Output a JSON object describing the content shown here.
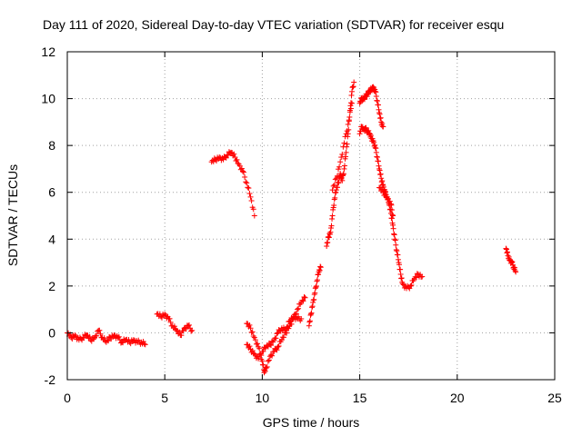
{
  "chart_data": {
    "type": "scatter",
    "title": "Day 111 of 2020, Sidereal Day-to-day VTEC variation (SDTVAR) for receiver esqu",
    "xlabel": "GPS time / hours",
    "ylabel": "SDTVAR / TECUs",
    "xlim": [
      0,
      25
    ],
    "ylim": [
      -2,
      12
    ],
    "xticks": [
      0,
      5,
      10,
      15,
      20,
      25
    ],
    "xtick_labels": [
      "0",
      "5",
      "10",
      "15",
      "20",
      "25"
    ],
    "yticks": [
      -2,
      0,
      2,
      4,
      6,
      8,
      10,
      12
    ],
    "ytick_labels": [
      "-2",
      "0",
      "2",
      "4",
      "6",
      "8",
      "10",
      "12"
    ],
    "grid": true,
    "marker": "+",
    "color": "#ff0000",
    "segments": [
      [
        [
          0.0,
          0.0
        ],
        [
          0.2,
          -0.2
        ],
        [
          0.4,
          -0.1
        ],
        [
          0.6,
          -0.3
        ],
        [
          0.8,
          -0.2
        ],
        [
          1.0,
          -0.1
        ],
        [
          1.2,
          -0.3
        ],
        [
          1.4,
          -0.2
        ],
        [
          1.6,
          0.1
        ],
        [
          1.8,
          -0.2
        ],
        [
          2.0,
          -0.4
        ],
        [
          2.2,
          -0.2
        ],
        [
          2.4,
          -0.1
        ],
        [
          2.6,
          -0.2
        ],
        [
          2.8,
          -0.4
        ],
        [
          3.0,
          -0.3
        ],
        [
          3.2,
          -0.4
        ],
        [
          3.4,
          -0.3
        ],
        [
          3.6,
          -0.4
        ],
        [
          3.8,
          -0.4
        ],
        [
          4.0,
          -0.5
        ]
      ],
      [
        [
          4.6,
          0.8
        ],
        [
          4.8,
          0.7
        ],
        [
          5.0,
          0.8
        ],
        [
          5.2,
          0.6
        ],
        [
          5.4,
          0.3
        ],
        [
          5.6,
          0.1
        ],
        [
          5.8,
          -0.1
        ],
        [
          6.0,
          0.2
        ],
        [
          6.2,
          0.3
        ],
        [
          6.4,
          0.1
        ]
      ],
      [
        [
          7.4,
          7.3
        ],
        [
          7.6,
          7.4
        ],
        [
          7.8,
          7.5
        ],
        [
          8.0,
          7.4
        ],
        [
          8.2,
          7.6
        ],
        [
          8.4,
          7.7
        ],
        [
          8.6,
          7.5
        ],
        [
          8.8,
          7.2
        ],
        [
          9.0,
          6.9
        ],
        [
          9.2,
          6.4
        ],
        [
          9.4,
          5.8
        ],
        [
          9.6,
          5.0
        ]
      ],
      [
        [
          9.2,
          0.4
        ],
        [
          9.4,
          0.2
        ],
        [
          9.6,
          -0.2
        ],
        [
          9.8,
          -0.6
        ],
        [
          10.0,
          -1.2
        ],
        [
          10.1,
          -1.7
        ],
        [
          10.2,
          -1.5
        ],
        [
          10.4,
          -1.0
        ],
        [
          10.6,
          -0.8
        ],
        [
          10.8,
          -0.6
        ],
        [
          11.0,
          -0.3
        ],
        [
          11.2,
          0.0
        ],
        [
          11.4,
          0.3
        ],
        [
          11.6,
          0.6
        ],
        [
          11.8,
          1.0
        ],
        [
          12.0,
          1.3
        ],
        [
          12.2,
          1.5
        ]
      ],
      [
        [
          9.2,
          -0.5
        ],
        [
          9.4,
          -0.7
        ],
        [
          9.6,
          -0.9
        ],
        [
          9.8,
          -1.1
        ],
        [
          10.0,
          -0.8
        ],
        [
          10.2,
          -0.6
        ],
        [
          10.4,
          -0.5
        ],
        [
          10.6,
          -0.3
        ],
        [
          10.8,
          0.0
        ],
        [
          11.0,
          0.2
        ],
        [
          11.2,
          0.1
        ],
        [
          11.4,
          0.5
        ],
        [
          11.6,
          0.7
        ],
        [
          11.8,
          0.6
        ],
        [
          12.0,
          0.6
        ]
      ],
      [
        [
          12.4,
          0.3
        ],
        [
          12.5,
          0.8
        ],
        [
          12.6,
          1.3
        ],
        [
          12.7,
          1.7
        ],
        [
          12.8,
          2.2
        ],
        [
          12.9,
          2.6
        ],
        [
          13.0,
          2.8
        ]
      ],
      [
        [
          13.3,
          3.7
        ],
        [
          13.4,
          4.1
        ],
        [
          13.5,
          4.3
        ],
        [
          13.6,
          5.0
        ],
        [
          13.7,
          5.7
        ],
        [
          13.8,
          6.1
        ],
        [
          13.9,
          6.4
        ],
        [
          14.0,
          6.8
        ],
        [
          14.1,
          6.5
        ],
        [
          14.2,
          7.0
        ],
        [
          14.3,
          7.7
        ],
        [
          14.4,
          8.5
        ],
        [
          14.5,
          9.5
        ],
        [
          14.6,
          10.3
        ],
        [
          14.7,
          10.7
        ]
      ],
      [
        [
          13.6,
          6.1
        ],
        [
          13.8,
          6.6
        ],
        [
          14.0,
          7.3
        ],
        [
          14.2,
          8.1
        ],
        [
          14.4,
          8.9
        ],
        [
          14.6,
          9.8
        ]
      ],
      [
        [
          15.0,
          9.8
        ],
        [
          15.1,
          10.0
        ],
        [
          15.2,
          10.0
        ],
        [
          15.3,
          10.1
        ],
        [
          15.4,
          10.2
        ],
        [
          15.5,
          10.3
        ],
        [
          15.6,
          10.4
        ],
        [
          15.7,
          10.5
        ],
        [
          15.8,
          10.3
        ],
        [
          15.9,
          9.9
        ],
        [
          16.0,
          9.4
        ],
        [
          16.1,
          9.0
        ],
        [
          16.2,
          8.8
        ]
      ],
      [
        [
          15.0,
          8.5
        ],
        [
          15.1,
          8.8
        ],
        [
          15.2,
          8.7
        ],
        [
          15.3,
          8.7
        ],
        [
          15.4,
          8.6
        ],
        [
          15.5,
          8.5
        ],
        [
          15.6,
          8.3
        ],
        [
          15.7,
          8.2
        ],
        [
          15.8,
          7.9
        ],
        [
          15.9,
          7.5
        ],
        [
          16.0,
          7.0
        ],
        [
          16.1,
          6.6
        ],
        [
          16.2,
          6.3
        ],
        [
          16.3,
          6.0
        ],
        [
          16.4,
          5.8
        ],
        [
          16.5,
          5.5
        ],
        [
          16.6,
          5.1
        ],
        [
          16.7,
          4.6
        ],
        [
          16.8,
          4.0
        ],
        [
          16.9,
          3.5
        ],
        [
          17.0,
          3.0
        ],
        [
          17.1,
          2.5
        ],
        [
          17.2,
          2.1
        ],
        [
          17.4,
          1.9
        ],
        [
          17.6,
          2.0
        ],
        [
          17.8,
          2.3
        ],
        [
          18.0,
          2.5
        ],
        [
          18.2,
          2.4
        ]
      ],
      [
        [
          16.0,
          6.2
        ],
        [
          16.2,
          6.0
        ],
        [
          16.4,
          5.8
        ],
        [
          16.6,
          5.5
        ],
        [
          16.7,
          5.0
        ]
      ],
      [
        [
          22.5,
          3.6
        ],
        [
          22.6,
          3.3
        ],
        [
          22.7,
          3.1
        ],
        [
          22.8,
          3.0
        ],
        [
          22.9,
          2.8
        ],
        [
          23.0,
          2.6
        ]
      ]
    ]
  }
}
